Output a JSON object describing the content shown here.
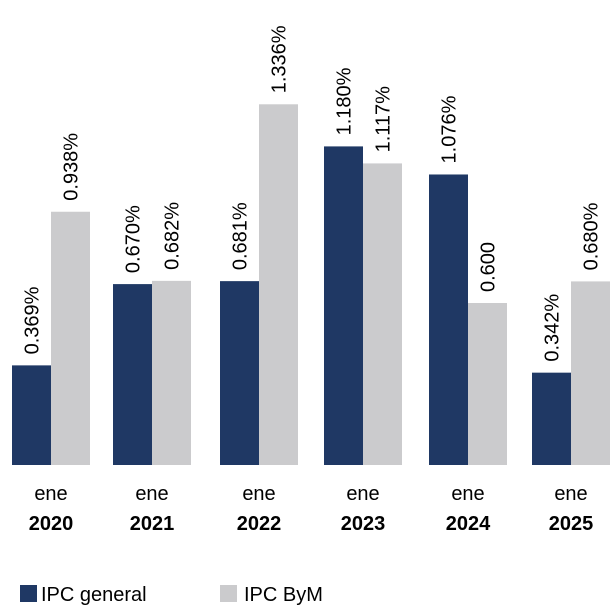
{
  "chart_data": {
    "type": "bar",
    "categories": [
      {
        "month": "ene",
        "year": "2020"
      },
      {
        "month": "ene",
        "year": "2021"
      },
      {
        "month": "ene",
        "year": "2022"
      },
      {
        "month": "ene",
        "year": "2023"
      },
      {
        "month": "ene",
        "year": "2024"
      },
      {
        "month": "ene",
        "year": "2025"
      }
    ],
    "series": [
      {
        "name": "IPC general",
        "color": "#1f3864",
        "values": [
          0.369,
          0.67,
          0.681,
          1.18,
          1.076,
          0.342
        ],
        "labels": [
          "0.369%",
          "0.670%",
          "0.681%",
          "1.180%",
          "1.076%",
          "0.342%"
        ]
      },
      {
        "name": "IPC ByM",
        "color": "#cbcbcd",
        "values": [
          0.938,
          0.682,
          1.336,
          1.117,
          0.6,
          0.68
        ],
        "labels": [
          "0.938%",
          "0.682%",
          "1.336%",
          "1.117%",
          "0.600",
          "0.680%"
        ]
      }
    ],
    "title": "",
    "xlabel": "",
    "ylabel": "",
    "ylim": [
      0,
      1.5
    ],
    "grid": false,
    "legend": "bottom-left"
  }
}
